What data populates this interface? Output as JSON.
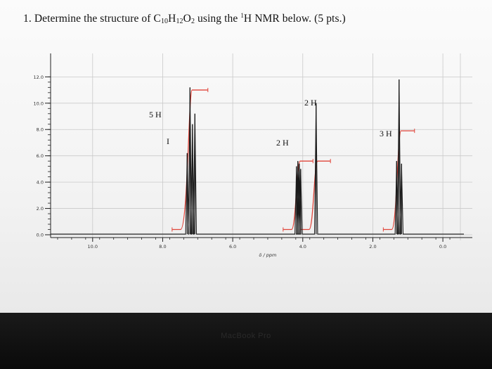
{
  "question": {
    "number": "1.",
    "pre": "Determine the structure of C",
    "c_sub": "10",
    "h": "H",
    "h_sub": "12",
    "o": "O",
    "o_sub": "2",
    "mid": " using the ",
    "h_sup": "1",
    "post": "H NMR below. (5 pts.)"
  },
  "chart_data": {
    "type": "line",
    "xlabel": "δ / ppm",
    "x_ticks": [
      "10.0",
      "8.0",
      "6.0",
      "4.0",
      "2.0",
      "0.0"
    ],
    "y_ticks": [
      "12.0",
      "10.0",
      "8.0",
      "6.0",
      "4.0",
      "2.0",
      "0.0"
    ],
    "xlim": [
      11.2,
      -0.6
    ],
    "ylim": [
      0,
      12.5
    ],
    "series": [
      {
        "peaks": [
          {
            "ppm": 7.3,
            "height": 6.2
          },
          {
            "ppm": 7.22,
            "height": 11.2
          },
          {
            "ppm": 7.15,
            "height": 8.4
          },
          {
            "ppm": 7.08,
            "height": 9.2
          },
          {
            "ppm": 4.18,
            "height": 5.2
          },
          {
            "ppm": 4.14,
            "height": 5.6
          },
          {
            "ppm": 4.1,
            "height": 5.4
          },
          {
            "ppm": 4.06,
            "height": 5.0
          },
          {
            "ppm": 3.62,
            "height": 10.0
          },
          {
            "ppm": 1.32,
            "height": 5.6
          },
          {
            "ppm": 1.25,
            "height": 11.8
          },
          {
            "ppm": 1.18,
            "height": 5.4
          }
        ]
      }
    ],
    "integrations": [
      {
        "label": "5 H",
        "ppm_start": 7.45,
        "ppm_end": 6.95
      },
      {
        "label": "2 H",
        "ppm_start": 4.28,
        "ppm_end": 3.95
      },
      {
        "label": "2 H",
        "ppm_start": 3.78,
        "ppm_end": 3.45
      },
      {
        "label": "3 H",
        "ppm_start": 1.42,
        "ppm_end": 1.05
      }
    ],
    "annotations": [
      "I"
    ],
    "grid": true
  },
  "footer": {
    "brand": "MacBook Pro"
  },
  "colors": {
    "spectrum": "#1a1a1a",
    "integral": "#e0453a",
    "grid": "#c9c9c9"
  }
}
